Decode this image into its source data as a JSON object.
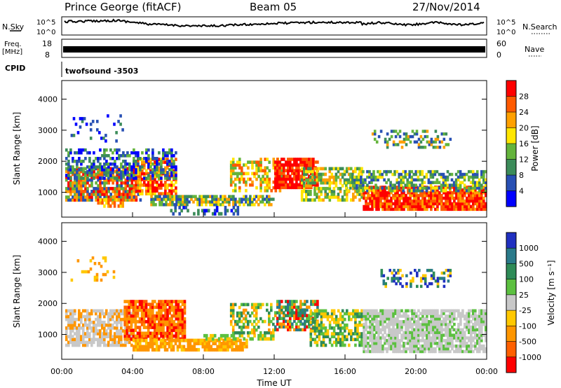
{
  "header": {
    "title": "Prince George (fitACF)",
    "beam": "Beam 05",
    "date": "27/Nov/2014"
  },
  "top_panels": {
    "nsky_label": "N.Sky",
    "nsky_ticks": [
      "10^5",
      "10^0"
    ],
    "nsearch_label": "N.Search",
    "nsearch_ticks": [
      "10^5",
      "10^0"
    ],
    "freq_label": "Freq.",
    "freq_unit": "[MHz]",
    "freq_ticks": [
      "18",
      "8"
    ],
    "nave_label": "Nave",
    "nave_ticks": [
      "60",
      "0"
    ],
    "cpid_label": "CPID",
    "cpid_value": "twofsound -3503"
  },
  "chart_data": [
    {
      "type": "heatmap",
      "name": "power",
      "ylabel": "Slant Range [km]",
      "yticks": [
        "4000",
        "3000",
        "2000",
        "1000"
      ],
      "ylim": [
        200,
        4600
      ],
      "xlim": [
        0,
        24
      ],
      "colorbar": {
        "label": "Power [dB]",
        "ticks": [
          "28",
          "24",
          "20",
          "16",
          "12",
          "8",
          "4"
        ],
        "colors": [
          "#ff0000",
          "#ff5a00",
          "#ffa000",
          "#ffe600",
          "#64b43c",
          "#3c8c5a",
          "#2850b4",
          "#0000ff"
        ]
      }
    },
    {
      "type": "heatmap",
      "name": "velocity",
      "ylabel": "Slant Range [km]",
      "yticks": [
        "4000",
        "3000",
        "2000",
        "1000"
      ],
      "ylim": [
        200,
        4600
      ],
      "xlim": [
        0,
        24
      ],
      "xticks": [
        "00:00",
        "04:00",
        "08:00",
        "12:00",
        "16:00",
        "20:00",
        "00:00"
      ],
      "xlabel": "Time UT",
      "colorbar": {
        "label": "Velocity [m s⁻¹]",
        "ticks": [
          "1000",
          "500",
          "100",
          "25",
          "-25",
          "-100",
          "-500",
          "-1000"
        ],
        "colors": [
          "#2030c0",
          "#2a7a8a",
          "#2e8b57",
          "#5cc040",
          "#c8c8c8",
          "#ffc800",
          "#ff9600",
          "#ff6000",
          "#ff0000"
        ]
      }
    }
  ]
}
